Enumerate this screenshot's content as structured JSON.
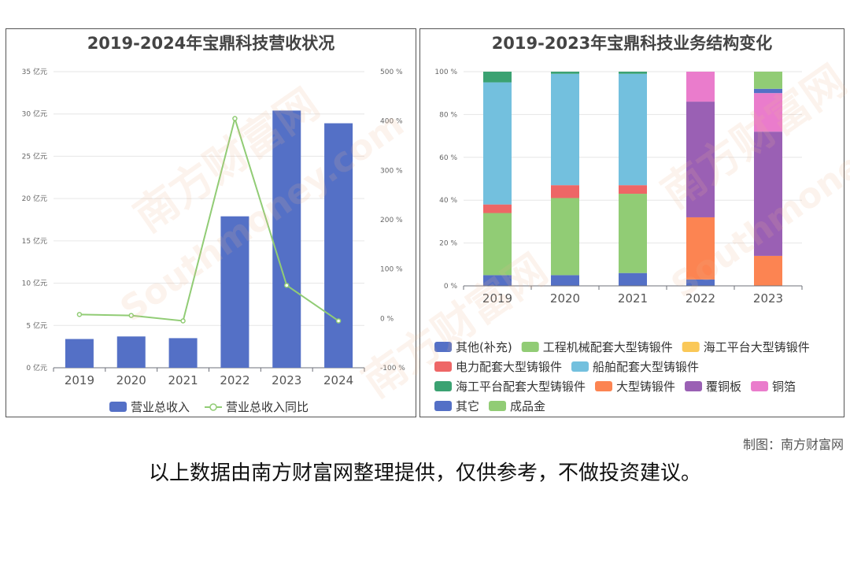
{
  "chart_data": [
    {
      "type": "bar",
      "title": "2019-2024年宝鼎科技营收状况",
      "categories": [
        "2019",
        "2020",
        "2021",
        "2022",
        "2023",
        "2024"
      ],
      "series": [
        {
          "name": "营业总收入",
          "type": "bar",
          "axis": "left",
          "color": "#5470c6",
          "values": [
            3.4,
            3.7,
            3.5,
            17.9,
            30.4,
            28.9
          ]
        },
        {
          "name": "营业总收入同比",
          "type": "line",
          "axis": "right",
          "color": "#91cc75",
          "values": [
            8,
            6,
            -5,
            405,
            67,
            -5
          ]
        }
      ],
      "y_left": {
        "min": 0,
        "max": 35,
        "ticks": [
          "0 亿元",
          "5 亿元",
          "10 亿元",
          "15 亿元",
          "20 亿元",
          "25 亿元",
          "30 亿元",
          "35 亿元"
        ]
      },
      "y_right": {
        "min": -100,
        "max": 500,
        "ticks": [
          "-100 %",
          "0 %",
          "100 %",
          "200 %",
          "300 %",
          "400 %",
          "500 %"
        ]
      },
      "legend_position": "bottom",
      "grid": true
    },
    {
      "type": "bar",
      "stacked": true,
      "title": "2019-2023年宝鼎科技业务结构变化",
      "categories": [
        "2019",
        "2020",
        "2021",
        "2022",
        "2023"
      ],
      "y": {
        "min": 0,
        "max": 100,
        "ticks": [
          "0 %",
          "20 %",
          "40 %",
          "60 %",
          "80 %",
          "100 %"
        ]
      },
      "series": [
        {
          "name": "其他(补充)",
          "color": "#5470c6",
          "values": [
            5,
            5,
            6,
            3,
            0
          ]
        },
        {
          "name": "工程机械配套大型铸锻件",
          "color": "#91cc75",
          "values": [
            29,
            36,
            37,
            0,
            0
          ]
        },
        {
          "name": "海工平台大型铸锻件",
          "color": "#fac858",
          "values": [
            0,
            0,
            0,
            0,
            0
          ]
        },
        {
          "name": "电力配套大型铸锻件",
          "color": "#ee6666",
          "values": [
            4,
            6,
            4,
            0,
            0
          ]
        },
        {
          "name": "船舶配套大型铸锻件",
          "color": "#73c0de",
          "values": [
            57,
            52,
            52,
            0,
            0
          ]
        },
        {
          "name": "海工平台配套大型铸锻件",
          "color": "#3ba272",
          "values": [
            5,
            1,
            1,
            0,
            0
          ]
        },
        {
          "name": "大型铸锻件",
          "color": "#fc8452",
          "values": [
            0,
            0,
            0,
            29,
            14
          ]
        },
        {
          "name": "覆铜板",
          "color": "#9a60b4",
          "values": [
            0,
            0,
            0,
            54,
            58
          ]
        },
        {
          "name": "铜箔",
          "color": "#ea7ccc",
          "values": [
            0,
            0,
            0,
            14,
            18
          ]
        },
        {
          "name": "其它",
          "color": "#5470c6",
          "values": [
            0,
            0,
            0,
            0,
            2
          ]
        },
        {
          "name": "成品金",
          "color": "#91cc75",
          "values": [
            0,
            0,
            0,
            0,
            8
          ]
        }
      ],
      "legend_position": "bottom",
      "grid": true
    }
  ],
  "credit": "制图：南方财富网",
  "disclaimer": "以上数据由南方财富网整理提供，仅供参考，不做投资建议。",
  "watermark": {
    "cn": "南方财富网",
    "en": "Southmoney.com"
  }
}
